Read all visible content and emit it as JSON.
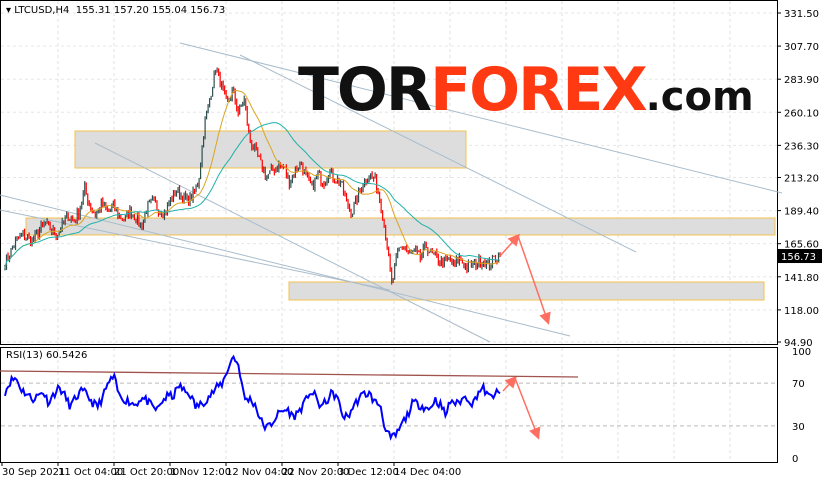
{
  "header": {
    "symbol": "LTCUSD,H4",
    "open": "155.31",
    "high": "157.20",
    "low": "155.04",
    "close": "156.73"
  },
  "logo": {
    "part1": "TOR",
    "part2": "FOREX",
    ".com": ".com"
  },
  "price_axis": {
    "ticks": [
      "331.50",
      "307.70",
      "283.90",
      "260.10",
      "236.30",
      "213.20",
      "189.40",
      "165.60",
      "141.80",
      "118.00",
      "94.90"
    ],
    "current": "156.73"
  },
  "rsi": {
    "label": "RSI(13) 60.5426",
    "ticks": [
      "100",
      "70",
      "30",
      "0"
    ],
    "values": [
      62,
      72,
      75,
      64,
      60,
      55,
      58,
      62,
      52,
      60,
      66,
      58,
      48,
      56,
      62,
      60,
      52,
      48,
      57,
      70,
      76,
      58,
      55,
      52,
      50,
      56,
      54,
      48,
      45,
      54,
      58,
      58,
      68,
      62,
      60,
      48,
      50,
      55,
      60,
      66,
      70,
      84,
      95,
      86,
      55,
      55,
      50,
      35,
      28,
      32,
      40,
      44,
      45,
      38,
      44,
      50,
      62,
      58,
      48,
      52,
      60,
      58,
      40,
      38,
      48,
      55,
      60,
      60,
      52,
      50,
      25,
      18,
      22,
      32,
      40,
      52,
      50,
      48,
      45,
      55,
      50,
      40,
      55,
      50,
      55,
      57,
      50,
      62,
      65,
      56,
      60,
      60.5
    ]
  },
  "time_axis": [
    "30 Sep 2021",
    "11 Oct 04:00",
    "21 Oct 20:00",
    "1 Nov 12:00",
    "12 Nov 04:00",
    "22 Nov 20:00",
    "3 Dec 12:00",
    "14 Dec 04:00"
  ],
  "price_series": [
    152,
    160,
    168,
    172,
    170,
    168,
    175,
    180,
    176,
    172,
    178,
    186,
    182,
    188,
    205,
    192,
    186,
    194,
    189,
    192,
    186,
    182,
    190,
    184,
    178,
    192,
    196,
    190,
    188,
    196,
    204,
    200,
    196,
    200,
    210,
    250,
    270,
    292,
    280,
    265,
    276,
    260,
    270,
    240,
    232,
    222,
    214,
    218,
    222,
    220,
    210,
    218,
    224,
    212,
    206,
    216,
    210,
    218,
    212,
    210,
    195,
    188,
    200,
    210,
    215,
    212,
    196,
    170,
    135,
    160,
    165,
    158,
    160,
    155,
    164,
    158,
    155,
    152,
    154,
    150,
    156,
    148,
    150,
    152,
    154,
    150,
    155,
    156.73
  ],
  "colors": {
    "bull": "#2f4f4f",
    "bear": "#ff0000",
    "ma_fast": "#daa520",
    "ma_slow": "#20b2aa",
    "rsi": "#0000ff",
    "arrow": "#ff6f61",
    "zone": "#d9d9d9",
    "zone_border": "#f2c14e",
    "trend": "#a9bccb"
  }
}
